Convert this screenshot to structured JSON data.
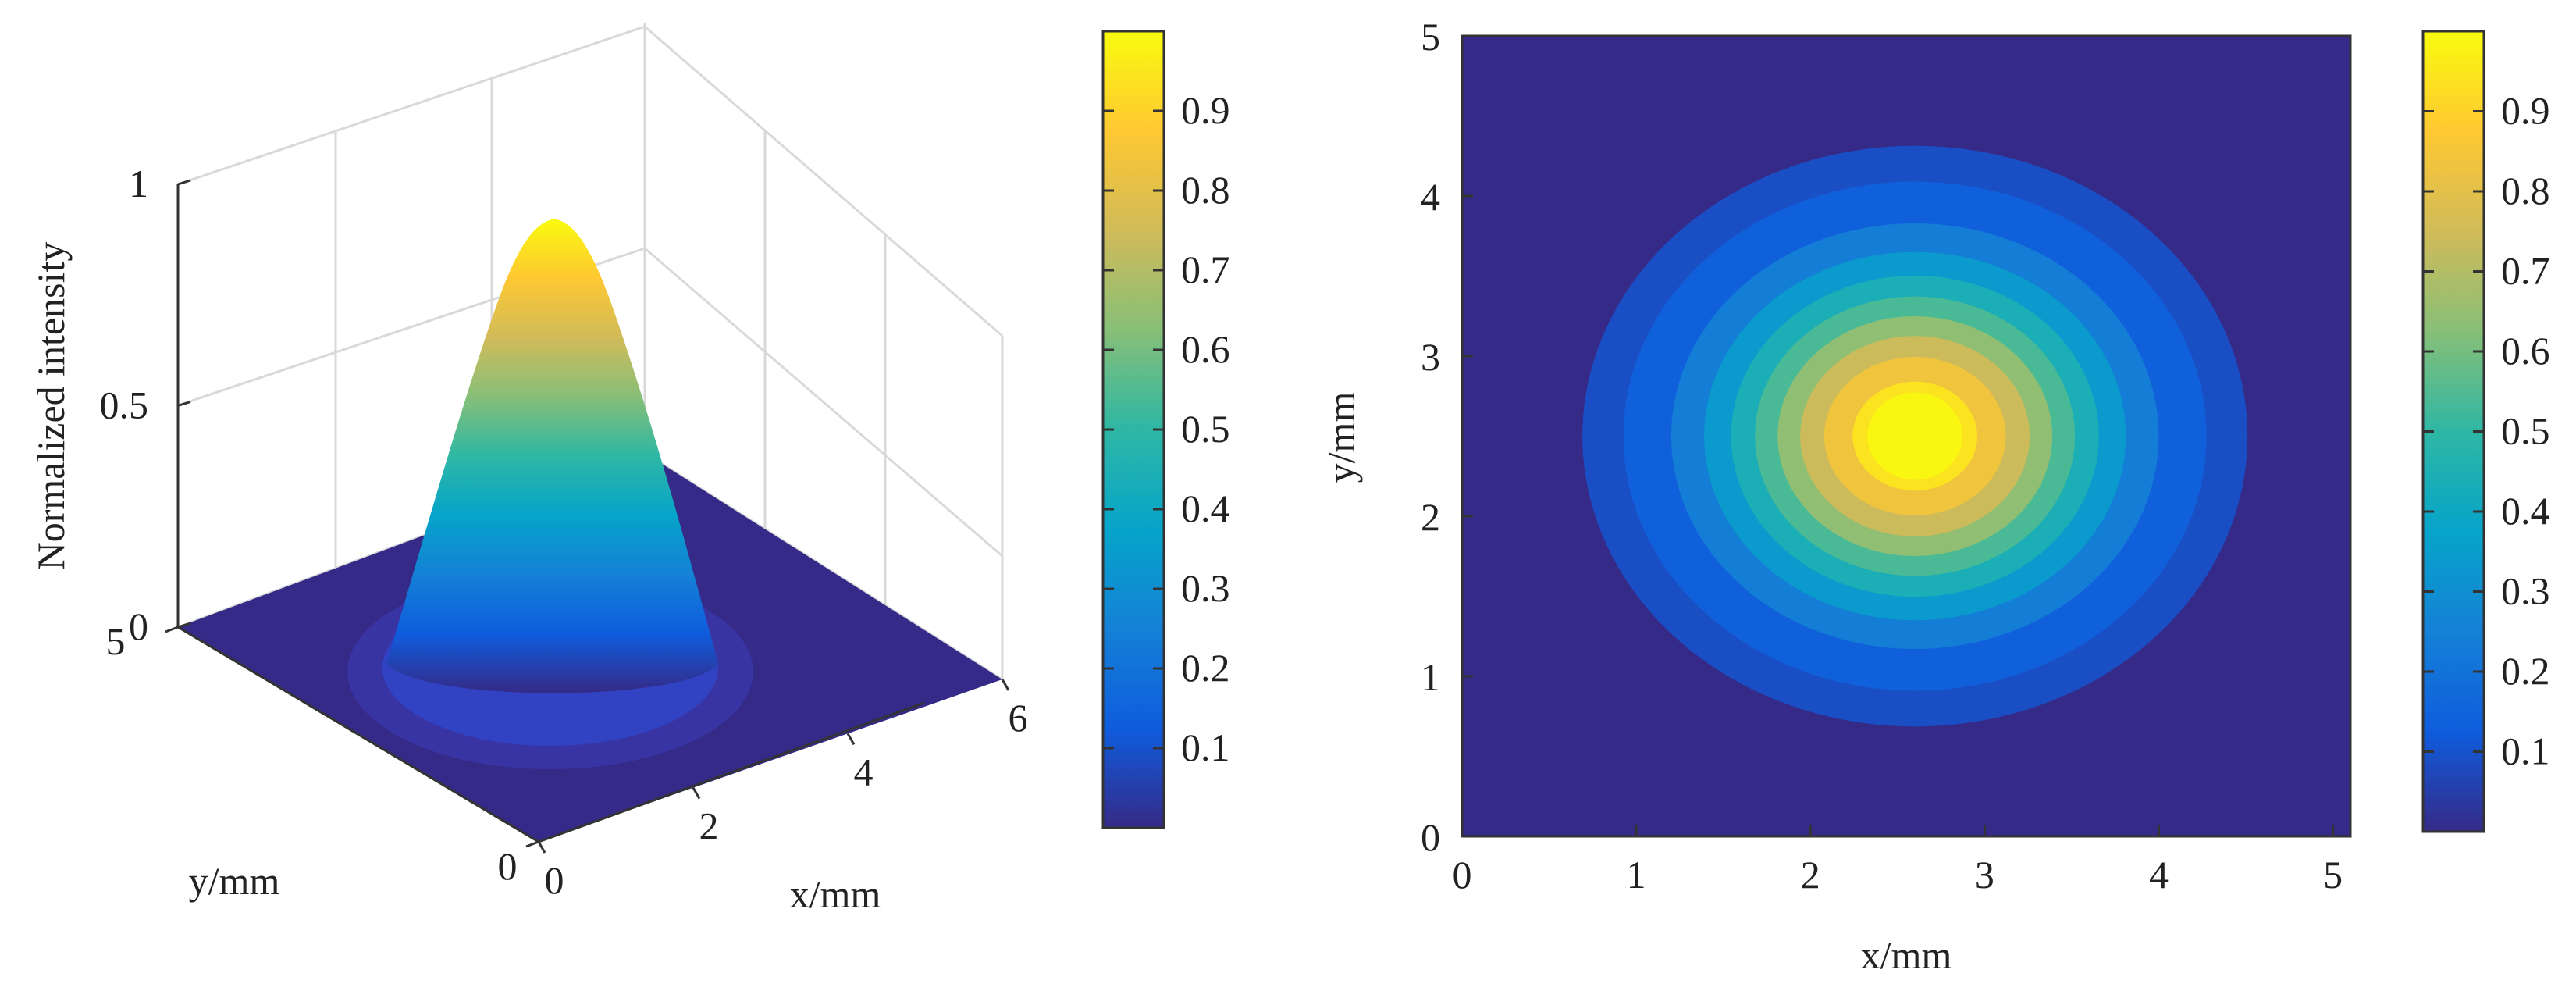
{
  "figure": {
    "description_free": true
  },
  "chart_data": [
    {
      "type": "surface3d",
      "title": "",
      "zlabel": "Normalized intensity",
      "xlabel": "x/mm",
      "ylabel": "y/mm",
      "x_ticks": [
        "0",
        "2",
        "4",
        "6"
      ],
      "y_ticks": [
        "0",
        "5"
      ],
      "z_ticks": [
        "0",
        "0.5",
        "1"
      ],
      "xlim": [
        0,
        6
      ],
      "ylim": [
        0,
        5
      ],
      "zlim": [
        0,
        1
      ],
      "peak": {
        "x": 2.6,
        "y": 2.5,
        "value": 1.0
      },
      "colormap": "parula",
      "colorbar": {
        "ticks": [
          "0.1",
          "0.2",
          "0.3",
          "0.4",
          "0.5",
          "0.6",
          "0.7",
          "0.8",
          "0.9"
        ],
        "range": [
          0,
          1
        ]
      }
    },
    {
      "type": "heatmap",
      "title": "",
      "xlabel": "x/mm",
      "ylabel": "y/mm",
      "x_ticks": [
        "0",
        "1",
        "2",
        "3",
        "4",
        "5"
      ],
      "y_ticks": [
        "0",
        "1",
        "2",
        "3",
        "4",
        "5"
      ],
      "xlim": [
        0,
        5.1
      ],
      "ylim": [
        0,
        5
      ],
      "center": {
        "x": 2.6,
        "y": 2.5
      },
      "peak_value": 1.0,
      "contour_levels": [
        0.05,
        0.1,
        0.2,
        0.3,
        0.4,
        0.5,
        0.6,
        0.7,
        0.8,
        0.9
      ],
      "colormap": "parula",
      "colorbar": {
        "ticks": [
          "0.1",
          "0.2",
          "0.3",
          "0.4",
          "0.5",
          "0.6",
          "0.7",
          "0.8",
          "0.9"
        ],
        "range": [
          0,
          1
        ]
      }
    }
  ],
  "colors": {
    "parula_stops": [
      "#352a87",
      "#0f5cdd",
      "#1481d6",
      "#06a4ca",
      "#2eb7a4",
      "#87bf77",
      "#d1bb59",
      "#fec832",
      "#f9fb0e"
    ],
    "axis": "#333333",
    "grid": "#dcdcdc"
  }
}
